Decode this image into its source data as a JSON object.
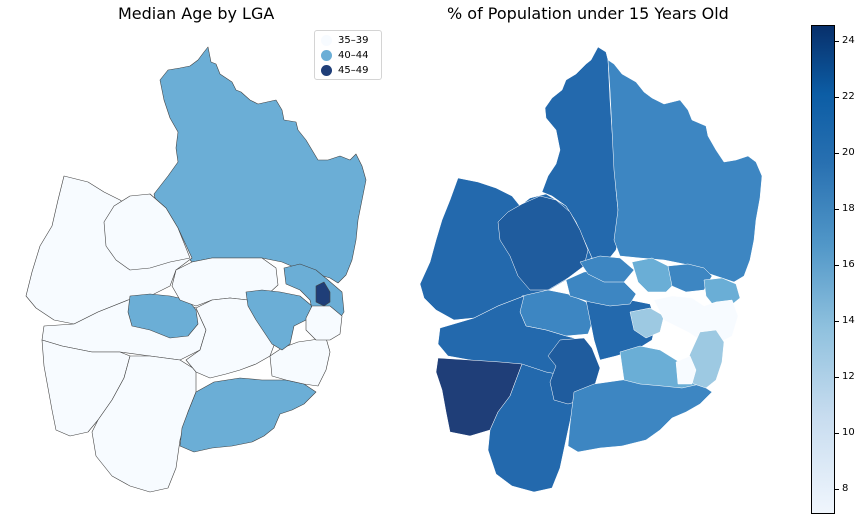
{
  "maps": {
    "left": {
      "title": "Median Age by LGA",
      "legend": {
        "entries": [
          {
            "label": "35–39",
            "color": "#f7fbff"
          },
          {
            "label": "40–44",
            "color": "#6baed6"
          },
          {
            "label": "45–49",
            "color": "#1f3e78"
          }
        ]
      }
    },
    "right": {
      "title": "% of Population under 15 Years Old",
      "colorbar": {
        "ticks": [
          "24",
          "22",
          "20",
          "18",
          "16",
          "14",
          "12",
          "10",
          "8"
        ],
        "range": [
          7,
          24.5
        ],
        "colormap": "Blues"
      }
    }
  },
  "colors": {
    "light": "#f7fbff",
    "mid": "#6baed6",
    "dark": "#1f3e78",
    "blue_20": "#2369ad",
    "blue_18": "#3d86c2",
    "blue_21": "#1f5c9e",
    "blue_15": "#6aaed6",
    "blue_13": "#9dc9e2"
  }
}
